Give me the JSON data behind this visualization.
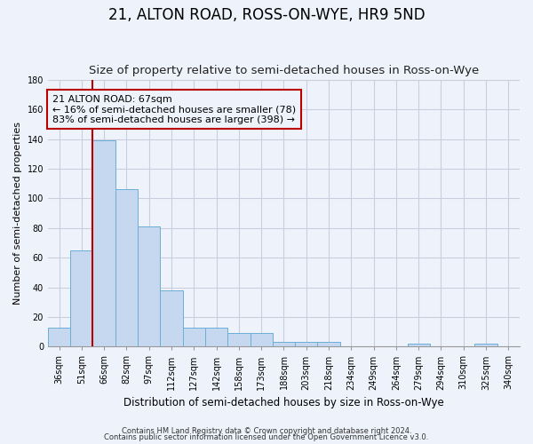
{
  "title": "21, ALTON ROAD, ROSS-ON-WYE, HR9 5ND",
  "subtitle": "Size of property relative to semi-detached houses in Ross-on-Wye",
  "xlabel": "Distribution of semi-detached houses by size in Ross-on-Wye",
  "ylabel": "Number of semi-detached properties",
  "footnote1": "Contains HM Land Registry data © Crown copyright and database right 2024.",
  "footnote2": "Contains public sector information licensed under the Open Government Licence v3.0.",
  "bar_labels": [
    "36sqm",
    "51sqm",
    "66sqm",
    "82sqm",
    "97sqm",
    "112sqm",
    "127sqm",
    "142sqm",
    "158sqm",
    "173sqm",
    "188sqm",
    "203sqm",
    "218sqm",
    "234sqm",
    "249sqm",
    "264sqm",
    "279sqm",
    "294sqm",
    "310sqm",
    "325sqm",
    "340sqm"
  ],
  "bar_values": [
    13,
    65,
    139,
    106,
    81,
    38,
    13,
    13,
    9,
    9,
    3,
    3,
    3,
    0,
    0,
    0,
    2,
    0,
    0,
    2,
    0
  ],
  "bar_color": "#c5d8f0",
  "bar_edge_color": "#6aaed6",
  "background_color": "#eef2fb",
  "grid_color": "#c8cede",
  "subject_bin_index": 2,
  "subject_line_color": "#bb0000",
  "annotation_line1": "21 ALTON ROAD: 67sqm",
  "annotation_line2": "← 16% of semi-detached houses are smaller (78)",
  "annotation_line3": "83% of semi-detached houses are larger (398) →",
  "annotation_box_color": "#bb0000",
  "ylim": [
    0,
    180
  ],
  "yticks": [
    0,
    20,
    40,
    60,
    80,
    100,
    120,
    140,
    160,
    180
  ],
  "title_fontsize": 12,
  "subtitle_fontsize": 9.5,
  "xlabel_fontsize": 8.5,
  "ylabel_fontsize": 8,
  "tick_fontsize": 7,
  "annotation_fontsize": 8,
  "footnote_fontsize": 6
}
